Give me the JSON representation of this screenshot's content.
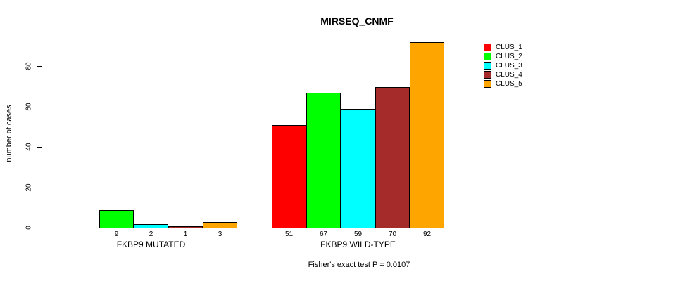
{
  "chart_data": {
    "type": "bar",
    "title": "MIRSEQ_CNMF",
    "ylabel": "number of cases",
    "yticks": [
      0,
      20,
      40,
      60,
      80
    ],
    "ylim": [
      0,
      92
    ],
    "grid": false,
    "legend_position": "right-outside",
    "series": [
      {
        "name": "CLUS_1",
        "color": "#ff0000"
      },
      {
        "name": "CLUS_2",
        "color": "#00ff00"
      },
      {
        "name": "CLUS_3",
        "color": "#00ffff"
      },
      {
        "name": "CLUS_4",
        "color": "#a52a2a"
      },
      {
        "name": "CLUS_5",
        "color": "#ffa500"
      }
    ],
    "categories": [
      "FKBP9 MUTATED",
      "FKBP9 WILD-TYPE"
    ],
    "groups": [
      {
        "label": "FKBP9 MUTATED",
        "values": [
          0,
          9,
          2,
          1,
          3
        ]
      },
      {
        "label": "FKBP9 WILD-TYPE",
        "values": [
          51,
          67,
          59,
          70,
          92
        ]
      }
    ],
    "bar_value_labels_shown": true,
    "zero_value_labels_hidden": true,
    "annotation": "Fisher's exact test P = 0.0107"
  }
}
